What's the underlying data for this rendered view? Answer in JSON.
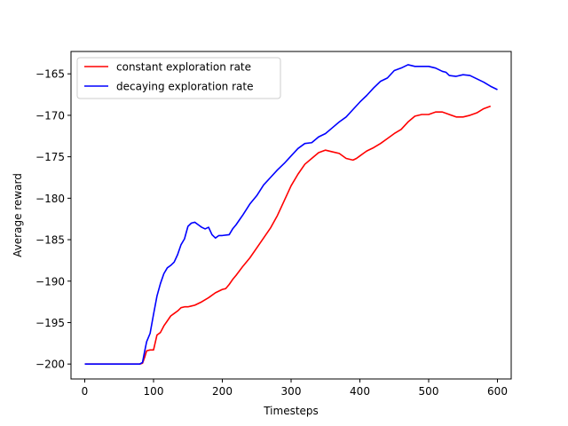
{
  "chart_data": {
    "type": "line",
    "title": "",
    "xlabel": "Timesteps",
    "ylabel": "Average reward",
    "xlim": [
      -20,
      620
    ],
    "ylim": [
      -201.8,
      -162.3
    ],
    "xticks": [
      0,
      100,
      200,
      300,
      400,
      500,
      600
    ],
    "yticks": [
      -200,
      -195,
      -190,
      -185,
      -180,
      -175,
      -170,
      -165
    ],
    "xtick_labels": [
      "0",
      "100",
      "200",
      "300",
      "400",
      "500",
      "600"
    ],
    "ytick_labels": [
      "−200",
      "−195",
      "−190",
      "−185",
      "−180",
      "−175",
      "−170",
      "−165"
    ],
    "grid": false,
    "legend_position": "top-left",
    "series": [
      {
        "name": "constant exploration rate",
        "color": "#ff0000",
        "x": [
          0,
          80,
          84,
          87,
          90,
          95,
          100,
          105,
          110,
          115,
          120,
          125,
          130,
          135,
          140,
          145,
          150,
          155,
          160,
          170,
          180,
          190,
          200,
          205,
          210,
          215,
          220,
          230,
          240,
          250,
          260,
          270,
          280,
          290,
          300,
          310,
          320,
          330,
          340,
          350,
          360,
          370,
          380,
          390,
          395,
          400,
          405,
          410,
          420,
          430,
          440,
          450,
          460,
          470,
          480,
          490,
          500,
          510,
          520,
          530,
          540,
          550,
          560,
          570,
          580,
          590
        ],
        "values": [
          -200,
          -200,
          -199.9,
          -199.2,
          -198.4,
          -198.3,
          -198.3,
          -196.5,
          -196.2,
          -195.4,
          -194.8,
          -194.2,
          -193.9,
          -193.6,
          -193.2,
          -193.1,
          -193.1,
          -193,
          -192.9,
          -192.5,
          -192,
          -191.4,
          -191,
          -190.9,
          -190.4,
          -189.8,
          -189.3,
          -188.2,
          -187.2,
          -186,
          -184.8,
          -183.6,
          -182.1,
          -180.3,
          -178.5,
          -177.1,
          -175.9,
          -175.2,
          -174.5,
          -174.2,
          -174.4,
          -174.6,
          -175.2,
          -175.4,
          -175.2,
          -174.9,
          -174.6,
          -174.3,
          -173.9,
          -173.4,
          -172.8,
          -172.2,
          -171.7,
          -170.8,
          -170.1,
          -169.9,
          -169.9,
          -169.6,
          -169.6,
          -169.9,
          -170.2,
          -170.2,
          -170,
          -169.7,
          -169.2,
          -168.9
        ]
      },
      {
        "name": "decaying exploration rate",
        "color": "#0000ff",
        "x": [
          0,
          80,
          84,
          87,
          90,
          95,
          100,
          105,
          110,
          115,
          120,
          125,
          130,
          135,
          140,
          145,
          150,
          155,
          160,
          165,
          170,
          175,
          180,
          185,
          190,
          195,
          200,
          210,
          215,
          220,
          225,
          230,
          240,
          250,
          260,
          270,
          280,
          290,
          300,
          310,
          320,
          330,
          340,
          350,
          360,
          370,
          380,
          390,
          400,
          410,
          420,
          430,
          440,
          450,
          460,
          470,
          480,
          490,
          500,
          510,
          520,
          525,
          530,
          540,
          550,
          560,
          570,
          580,
          590,
          600
        ],
        "values": [
          -200,
          -200,
          -199.8,
          -198.5,
          -197.3,
          -196.3,
          -194,
          -191.8,
          -190.3,
          -189.1,
          -188.4,
          -188.1,
          -187.7,
          -186.8,
          -185.6,
          -184.9,
          -183.4,
          -183,
          -182.9,
          -183.2,
          -183.5,
          -183.7,
          -183.5,
          -184.4,
          -184.8,
          -184.5,
          -184.5,
          -184.4,
          -183.7,
          -183.2,
          -182.6,
          -182,
          -180.7,
          -179.7,
          -178.4,
          -177.5,
          -176.6,
          -175.8,
          -174.9,
          -174,
          -173.4,
          -173.3,
          -172.6,
          -172.2,
          -171.5,
          -170.8,
          -170.2,
          -169.3,
          -168.4,
          -167.6,
          -166.7,
          -165.9,
          -165.5,
          -164.6,
          -164.3,
          -163.9,
          -164.1,
          -164.1,
          -164.1,
          -164.3,
          -164.7,
          -164.8,
          -165.2,
          -165.3,
          -165.1,
          -165.2,
          -165.6,
          -166,
          -166.5,
          -166.9
        ]
      }
    ]
  }
}
